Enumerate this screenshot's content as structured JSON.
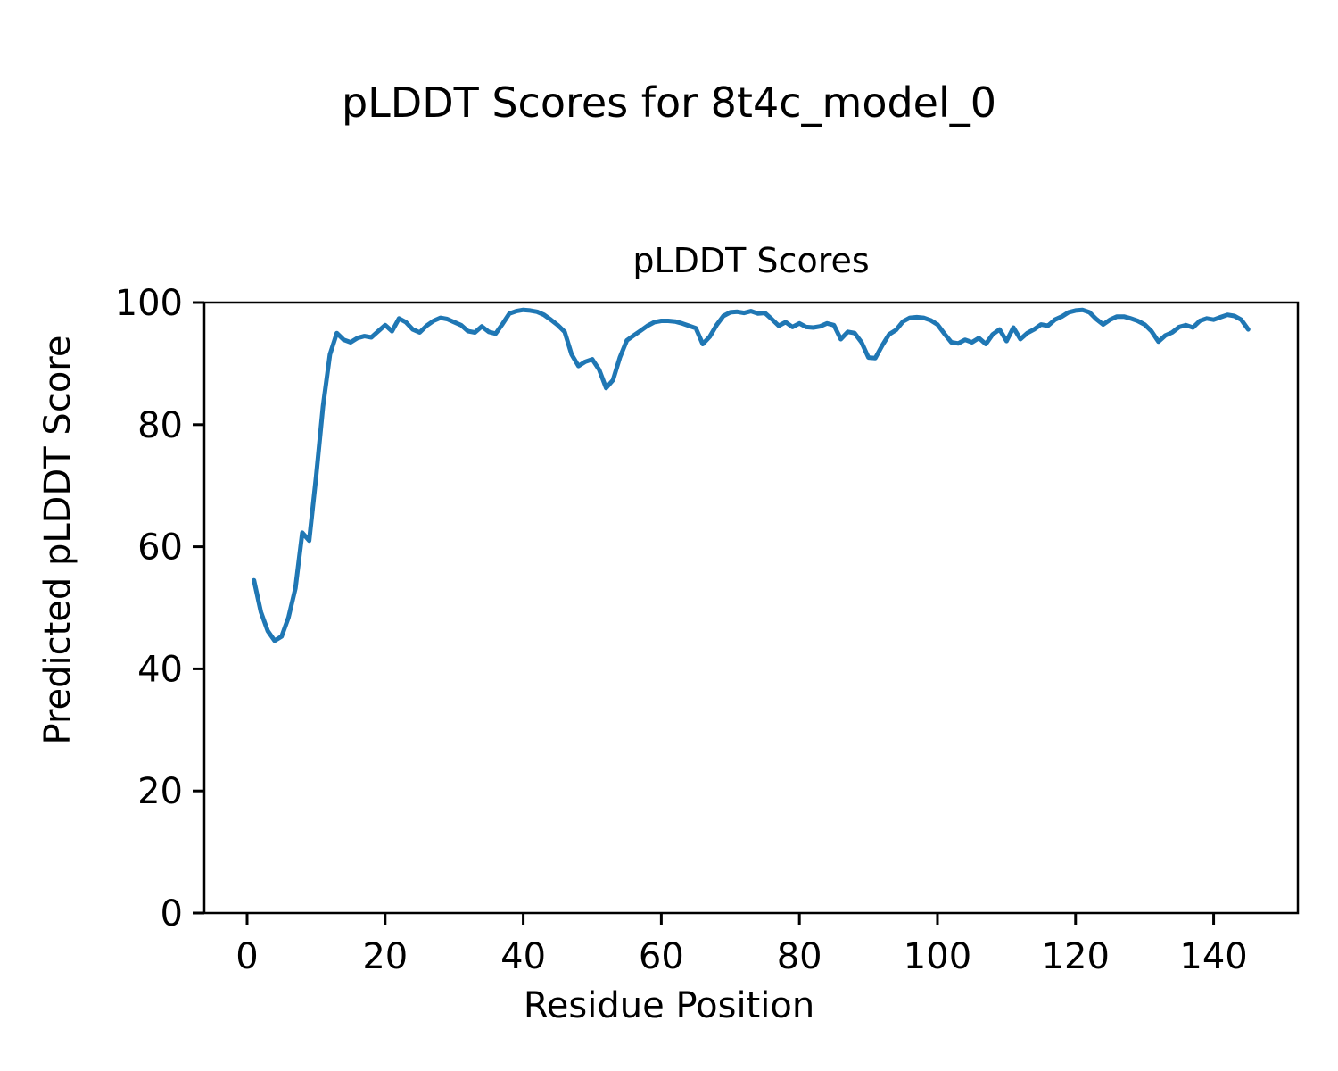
{
  "figure_title": "pLDDT Scores for 8t4c_model_0",
  "chart_data": {
    "type": "line",
    "title": "pLDDT Scores",
    "xlabel": "Residue Position",
    "ylabel": "Predicted pLDDT Score",
    "x_ticks": [
      0,
      20,
      40,
      60,
      80,
      100,
      120,
      140
    ],
    "y_ticks": [
      0,
      20,
      40,
      60,
      80,
      100
    ],
    "xlim": [
      -6.2,
      152.2
    ],
    "ylim": [
      0,
      100
    ],
    "grid": false,
    "legend": false,
    "axis_color": "#000000",
    "series": [
      {
        "name": "pLDDT",
        "color": "#1f77b4",
        "line_width": 5,
        "x_start": 1,
        "x_step": 1,
        "values": [
          54.5,
          49.3,
          46.2,
          44.6,
          45.3,
          48.4,
          53.2,
          62.3,
          61.0,
          71.5,
          83.0,
          91.5,
          95.0,
          93.9,
          93.5,
          94.2,
          94.5,
          94.3,
          95.3,
          96.3,
          95.3,
          97.4,
          96.8,
          95.6,
          95.1,
          96.2,
          97.0,
          97.5,
          97.3,
          96.8,
          96.3,
          95.3,
          95.1,
          96.1,
          95.2,
          94.9,
          96.5,
          98.2,
          98.6,
          98.8,
          98.7,
          98.5,
          98.0,
          97.2,
          96.3,
          95.2,
          91.5,
          89.6,
          90.3,
          90.7,
          89.0,
          86.0,
          87.3,
          91.0,
          93.8,
          94.6,
          95.4,
          96.2,
          96.8,
          97.0,
          97.0,
          96.9,
          96.6,
          96.2,
          95.8,
          93.2,
          94.4,
          96.3,
          97.8,
          98.4,
          98.5,
          98.3,
          98.6,
          98.2,
          98.3,
          97.3,
          96.2,
          96.8,
          96.0,
          96.6,
          96.0,
          95.9,
          96.1,
          96.6,
          96.3,
          94.0,
          95.2,
          95.0,
          93.5,
          91.0,
          90.9,
          93.0,
          94.8,
          95.5,
          96.9,
          97.5,
          97.6,
          97.5,
          97.1,
          96.4,
          94.9,
          93.5,
          93.3,
          93.9,
          93.5,
          94.2,
          93.2,
          94.8,
          95.6,
          93.7,
          95.9,
          94.0,
          95.0,
          95.6,
          96.4,
          96.2,
          97.2,
          97.7,
          98.4,
          98.7,
          98.8,
          98.4,
          97.3,
          96.4,
          97.2,
          97.7,
          97.7,
          97.4,
          97.0,
          96.4,
          95.3,
          93.6,
          94.6,
          95.1,
          96.0,
          96.3,
          95.9,
          97.0,
          97.4,
          97.2,
          97.6,
          98.0,
          97.8,
          97.2,
          95.6
        ]
      }
    ]
  }
}
